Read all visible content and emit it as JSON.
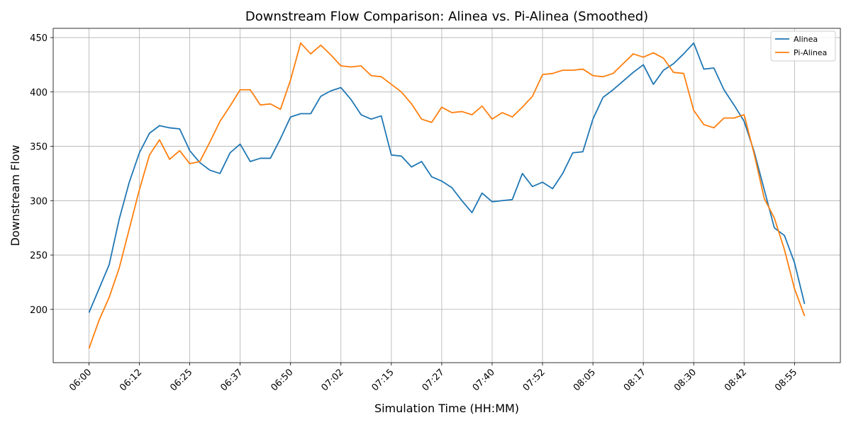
{
  "chart_data": {
    "type": "line",
    "title": "Downstream Flow Comparison: Alinea vs. Pi-Alinea (Smoothed)",
    "x_label": "Simulation Time (HH:MM)",
    "y_label": "Downstream Flow",
    "categories": [
      "06:00",
      null,
      null,
      null,
      null,
      "06:12",
      null,
      null,
      null,
      null,
      "06:25",
      null,
      null,
      null,
      null,
      "06:37",
      null,
      null,
      null,
      null,
      "06:50",
      null,
      null,
      null,
      null,
      "07:02",
      null,
      null,
      null,
      null,
      "07:15",
      null,
      null,
      null,
      null,
      "07:27",
      null,
      null,
      null,
      null,
      "07:40",
      null,
      null,
      null,
      null,
      "07:52",
      null,
      null,
      null,
      null,
      "08:05",
      null,
      null,
      null,
      null,
      "08:17",
      null,
      null,
      null,
      null,
      "08:30",
      null,
      null,
      null,
      null,
      "08:42",
      null,
      null,
      null,
      null,
      "08:55",
      null
    ],
    "series": [
      {
        "name": "Alinea",
        "color": "#1f77b4",
        "values": [
          197,
          219,
          241,
          283,
          317,
          344,
          362,
          369,
          367,
          366,
          346,
          335,
          328,
          325,
          344,
          352,
          336,
          339,
          339,
          357,
          377,
          380,
          380,
          396,
          401,
          404,
          393,
          379,
          375,
          378,
          342,
          341,
          331,
          336,
          322,
          318,
          312,
          300,
          289,
          307,
          299,
          300,
          301,
          325,
          313,
          317,
          311,
          325,
          344,
          345,
          375,
          395,
          402,
          410,
          418,
          425,
          407,
          420,
          426,
          435,
          445,
          421,
          422,
          402,
          388,
          373,
          345,
          310,
          275,
          268,
          243,
          205
        ]
      },
      {
        "name": "Pi-Alinea",
        "color": "#ff7f0e",
        "values": [
          164,
          190,
          211,
          238,
          274,
          310,
          342,
          356,
          338,
          346,
          334,
          336,
          354,
          373,
          387,
          402,
          402,
          388,
          389,
          384,
          411,
          445,
          435,
          443,
          434,
          424,
          423,
          424,
          415,
          414,
          407,
          400,
          389,
          375,
          372,
          386,
          381,
          382,
          379,
          387,
          375,
          381,
          377,
          386,
          396,
          416,
          417,
          420,
          420,
          421,
          415,
          414,
          417,
          426,
          435,
          432,
          436,
          431,
          418,
          417,
          383,
          370,
          367,
          376,
          376,
          379,
          343,
          302,
          284,
          255,
          219,
          194
        ]
      }
    ],
    "ylim": [
      151,
      458.5
    ],
    "yticks": [
      200,
      250,
      300,
      350,
      400,
      450
    ],
    "grid": true,
    "legend": "upper right"
  }
}
